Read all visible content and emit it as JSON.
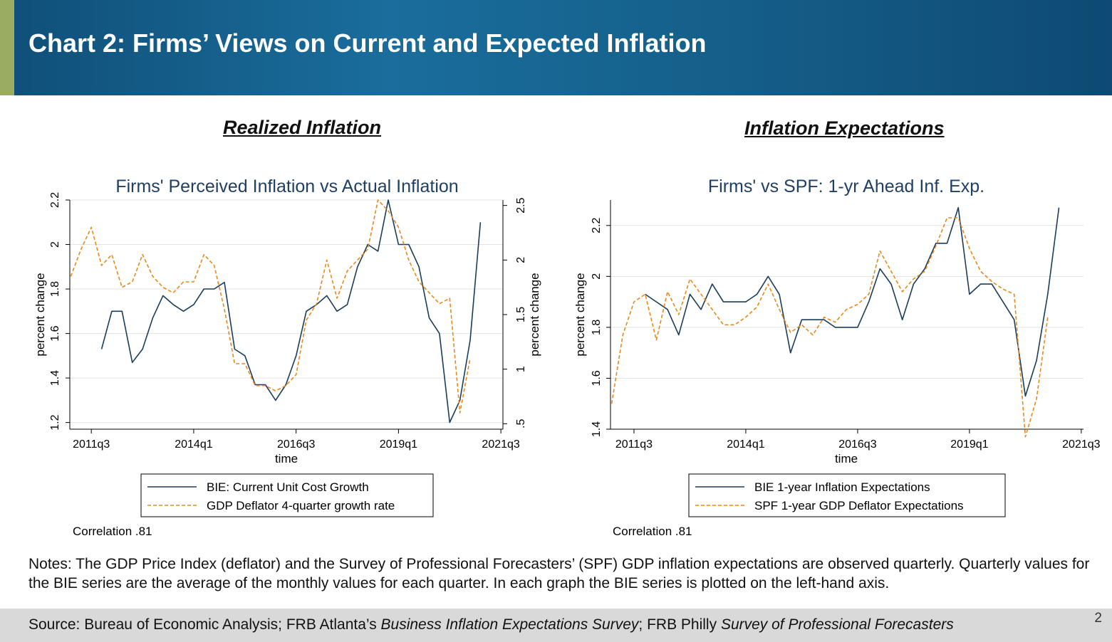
{
  "header": {
    "title": "Chart 2: Firms’ Views on Current and Expected Inflation"
  },
  "sections": {
    "left_title": "Realized Inflation",
    "right_title": "Inflation Expectations"
  },
  "colors": {
    "bie": "#1a3d5c",
    "gdp": "#e8891c",
    "header": "#155f8a",
    "accent": "#9aab62"
  },
  "chart_data": [
    {
      "type": "line",
      "title": "Firms' Perceived Inflation vs Actual Inflation",
      "xlabel": "time",
      "ylabel": "percent change",
      "y2label": "percent change",
      "xticks": [
        "2011q3",
        "2014q1",
        "2016q3",
        "2019q1",
        "2021q3"
      ],
      "xtick_values": [
        0,
        10,
        20,
        30,
        40
      ],
      "xlim": [
        -2.1,
        40.2
      ],
      "ylim": [
        1.17,
        2.2
      ],
      "yticks": [
        1.2,
        1.4,
        1.6,
        1.8,
        2,
        2.2
      ],
      "yticklabels": [
        "1.2",
        "1.4",
        "1.6",
        "1.8",
        "2",
        "2.2"
      ],
      "y2lim": [
        0.45,
        2.55
      ],
      "y2ticks": [
        0.5,
        1,
        1.5,
        2,
        2.5
      ],
      "y2ticklabels": [
        ".5",
        "1",
        "1.5",
        "2",
        "2.5"
      ],
      "grid": true,
      "legend_position": "bottom",
      "note": "Correlation .81",
      "series": [
        {
          "name": "BIE: Current Unit Cost Growth",
          "axis": "left",
          "style": "solid",
          "x": [
            1,
            2,
            3,
            4,
            5,
            6,
            7,
            8,
            9,
            10,
            11,
            12,
            13,
            14,
            15,
            16,
            17,
            18,
            19,
            20,
            21,
            22,
            23,
            24,
            25,
            26,
            27,
            28,
            29,
            30,
            31,
            32,
            33,
            34,
            35,
            36,
            37,
            38
          ],
          "y": [
            1.53,
            1.7,
            1.7,
            1.47,
            1.53,
            1.67,
            1.77,
            1.73,
            1.7,
            1.73,
            1.8,
            1.8,
            1.83,
            1.53,
            1.5,
            1.37,
            1.37,
            1.3,
            1.37,
            1.5,
            1.7,
            1.73,
            1.77,
            1.7,
            1.73,
            1.9,
            2.0,
            1.97,
            2.2,
            2.0,
            2.0,
            1.9,
            1.67,
            1.6,
            1.2,
            1.3,
            1.57,
            2.1
          ]
        },
        {
          "name": "GDP Deflator 4-quarter growth rate",
          "axis": "right",
          "style": "dashed",
          "x": [
            -2,
            -1,
            0,
            1,
            2,
            3,
            4,
            5,
            6,
            7,
            8,
            9,
            10,
            11,
            12,
            13,
            14,
            15,
            16,
            17,
            18,
            19,
            20,
            21,
            22,
            23,
            24,
            25,
            26,
            27,
            28,
            29,
            30,
            31,
            32,
            33,
            34,
            35,
            36,
            37
          ],
          "y": [
            1.85,
            2.1,
            2.3,
            1.95,
            2.05,
            1.75,
            1.8,
            2.05,
            1.85,
            1.75,
            1.7,
            1.8,
            1.8,
            2.05,
            1.95,
            1.55,
            1.05,
            1.05,
            0.85,
            0.85,
            0.8,
            0.85,
            0.95,
            1.45,
            1.6,
            2.0,
            1.65,
            1.9,
            2.0,
            2.1,
            2.55,
            2.45,
            2.3,
            2.0,
            1.8,
            1.7,
            1.6,
            1.65,
            0.6,
            1.1
          ]
        }
      ]
    },
    {
      "type": "line",
      "title": "Firms' vs SPF: 1-yr Ahead Inf. Exp.",
      "xlabel": "time",
      "ylabel": "percent change",
      "xticks": [
        "2011q3",
        "2014q1",
        "2016q3",
        "2019q1",
        "2021q3"
      ],
      "xtick_values": [
        0,
        10,
        20,
        30,
        40
      ],
      "xlim": [
        -2.1,
        40.2
      ],
      "ylim": [
        1.4,
        2.3
      ],
      "yticks": [
        1.4,
        1.6,
        1.8,
        2,
        2.2
      ],
      "yticklabels": [
        "1.4",
        "1.6",
        "1.8",
        "2",
        "2.2"
      ],
      "grid": true,
      "legend_position": "bottom",
      "note": "Correlation .81",
      "series": [
        {
          "name": "BIE 1-year Inflation Expectations",
          "axis": "left",
          "style": "solid",
          "x": [
            1,
            2,
            3,
            4,
            5,
            6,
            7,
            8,
            9,
            10,
            11,
            12,
            13,
            14,
            15,
            16,
            17,
            18,
            19,
            20,
            21,
            22,
            23,
            24,
            25,
            26,
            27,
            28,
            29,
            30,
            31,
            32,
            33,
            34,
            35,
            36,
            37,
            38
          ],
          "y": [
            1.93,
            1.9,
            1.87,
            1.77,
            1.93,
            1.87,
            1.97,
            1.9,
            1.9,
            1.9,
            1.93,
            2.0,
            1.93,
            1.7,
            1.83,
            1.83,
            1.83,
            1.8,
            1.8,
            1.8,
            1.9,
            2.03,
            1.97,
            1.83,
            1.97,
            2.03,
            2.13,
            2.13,
            2.27,
            1.93,
            1.97,
            1.97,
            1.9,
            1.83,
            1.53,
            1.67,
            1.93,
            2.27
          ]
        },
        {
          "name": "SPF 1-year GDP Deflator Expectations",
          "axis": "left",
          "style": "dashed",
          "x": [
            -2,
            -1,
            0,
            1,
            2,
            3,
            4,
            5,
            6,
            7,
            8,
            9,
            10,
            11,
            12,
            13,
            14,
            15,
            16,
            17,
            18,
            19,
            20,
            21,
            22,
            23,
            24,
            25,
            26,
            27,
            28,
            29,
            30,
            31,
            32,
            33,
            34,
            35,
            36,
            37
          ],
          "y": [
            1.5,
            1.77,
            1.9,
            1.93,
            1.75,
            1.94,
            1.85,
            1.99,
            1.93,
            1.87,
            1.81,
            1.81,
            1.84,
            1.88,
            1.97,
            1.87,
            1.78,
            1.81,
            1.77,
            1.84,
            1.82,
            1.87,
            1.89,
            1.93,
            2.1,
            2.02,
            1.94,
            1.99,
            2.02,
            2.12,
            2.23,
            2.23,
            2.11,
            2.02,
            1.98,
            1.95,
            1.93,
            1.37,
            1.52,
            1.84
          ]
        }
      ]
    }
  ],
  "notes": "Notes: The GDP Price Index (deflator) and the Survey of Professional Forecasters’ (SPF) GDP inflation expectations are observed quarterly. Quarterly values for the BIE series are the average of the monthly values for each quarter. In each graph the BIE series is plotted on the left-hand axis.",
  "source": {
    "prefix": "Source: Bureau of Economic Analysis; FRB Atlanta’s ",
    "italic1": "Business Inflation Expectations Survey",
    "mid": "; FRB Philly ",
    "italic2": "Survey of Professional Forecasters"
  },
  "page_number": "2"
}
